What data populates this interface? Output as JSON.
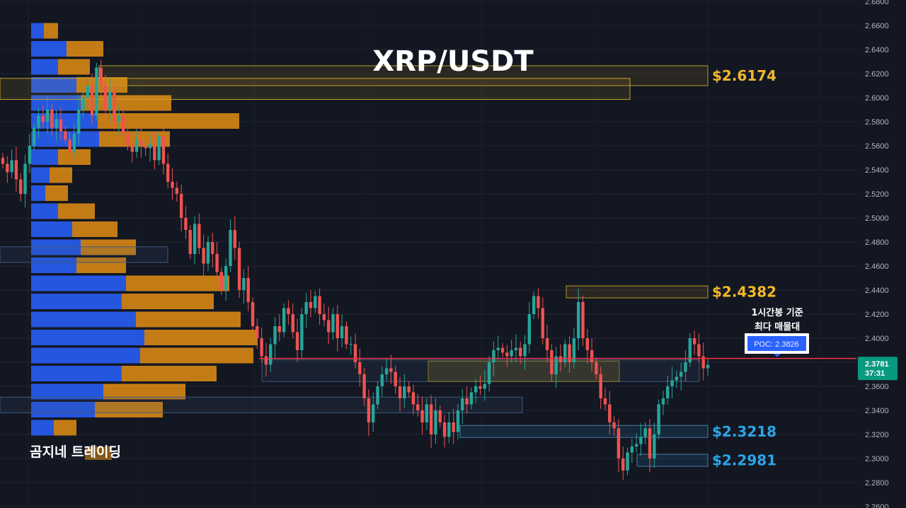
{
  "chart_data": {
    "type": "candlestick",
    "title": "XRP/USDT",
    "y_axis": {
      "ticks": [
        "2.6800",
        "2.6600",
        "2.6400",
        "2.6200",
        "2.6000",
        "2.5800",
        "2.5600",
        "2.5400",
        "2.5200",
        "2.5000",
        "2.4800",
        "2.4600",
        "2.4400",
        "2.4200",
        "2.4000",
        "2.3800",
        "2.3600",
        "2.3400",
        "2.3200",
        "2.3000",
        "2.2800",
        "2.2600"
      ],
      "range": [
        2.26,
        2.68
      ]
    },
    "current_price": {
      "value": "2.3781",
      "countdown": "37:31",
      "numeric": 2.3781
    },
    "levels": [
      {
        "label": "$2.6174",
        "color": "#f2b82b",
        "low": 2.61,
        "high": 2.6265,
        "x_start_frac": 0.0
      },
      {
        "label": "$2.4382",
        "color": "#f2b82b",
        "low": 2.4335,
        "high": 2.4435,
        "x_start_frac": 0.0
      },
      {
        "label": "$2.3218",
        "color": "#2aa6e8",
        "low": 2.3175,
        "high": 2.3275,
        "x_start_frac": 0.0
      },
      {
        "label": "$2.2981",
        "color": "#2aa6e8",
        "low": 2.2935,
        "high": 2.3035,
        "x_start_frac": 0.0
      }
    ],
    "poc": {
      "label": "POC: 2.3826",
      "value": 2.3826,
      "note_line1": "1시간봉 기준",
      "note_line2": "최다 매물대"
    },
    "volume_profile": {
      "rows": [
        {
          "price": 2.655,
          "buy": 18,
          "sell": 20
        },
        {
          "price": 2.64,
          "buy": 50,
          "sell": 52
        },
        {
          "price": 2.625,
          "buy": 38,
          "sell": 45
        },
        {
          "price": 2.61,
          "buy": 64,
          "sell": 72
        },
        {
          "price": 2.595,
          "buy": 70,
          "sell": 128
        },
        {
          "price": 2.58,
          "buy": 94,
          "sell": 200
        },
        {
          "price": 2.565,
          "buy": 96,
          "sell": 100
        },
        {
          "price": 2.55,
          "buy": 38,
          "sell": 46
        },
        {
          "price": 2.535,
          "buy": 26,
          "sell": 32
        },
        {
          "price": 2.52,
          "buy": 20,
          "sell": 32
        },
        {
          "price": 2.505,
          "buy": 38,
          "sell": 52
        },
        {
          "price": 2.49,
          "buy": 58,
          "sell": 64
        },
        {
          "price": 2.475,
          "buy": 70,
          "sell": 78
        },
        {
          "price": 2.46,
          "buy": 64,
          "sell": 70
        },
        {
          "price": 2.445,
          "buy": 134,
          "sell": 146
        },
        {
          "price": 2.43,
          "buy": 128,
          "sell": 130
        },
        {
          "price": 2.415,
          "buy": 148,
          "sell": 148
        },
        {
          "price": 2.4,
          "buy": 160,
          "sell": 160
        },
        {
          "price": 2.385,
          "buy": 154,
          "sell": 160
        },
        {
          "price": 2.37,
          "buy": 128,
          "sell": 134
        },
        {
          "price": 2.355,
          "buy": 102,
          "sell": 116
        },
        {
          "price": 2.34,
          "buy": 90,
          "sell": 96
        },
        {
          "price": 2.325,
          "buy": 32,
          "sell": 32
        }
      ]
    }
  },
  "watermark": "곰지네 트레이딩",
  "colors": {
    "up": "#26a69a",
    "down": "#ef5350",
    "buy_volume": "#2962ff",
    "sell_volume": "#e38e13",
    "poc_line": "#f23645",
    "price_tag": "#089981"
  }
}
